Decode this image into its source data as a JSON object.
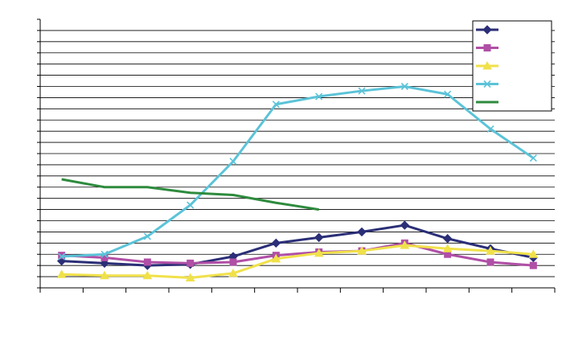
{
  "chart_data": {
    "type": "line",
    "title": "",
    "xlabel": "",
    "ylabel": "",
    "grid": true,
    "legend_position": "top-right",
    "x": [
      1,
      2,
      3,
      4,
      5,
      6,
      7,
      8,
      9,
      10,
      11,
      12
    ],
    "xlim": [
      0.5,
      12.5
    ],
    "ylim": [
      0,
      240
    ],
    "series": [
      {
        "color": "#2B2F77",
        "marker": "diamond",
        "values": [
          24,
          22,
          20,
          21,
          28,
          40,
          45,
          50,
          56,
          44,
          35,
          27
        ]
      },
      {
        "color": "#B04FA6",
        "marker": "square",
        "values": [
          29,
          27,
          23,
          22,
          23,
          29,
          32,
          33,
          40,
          30,
          23,
          20
        ]
      },
      {
        "color": "#F0E14A",
        "marker": "triangle",
        "values": [
          12,
          11,
          11,
          9,
          13,
          26,
          31,
          33,
          38,
          35,
          33,
          30
        ]
      },
      {
        "color": "#5BC3D8",
        "marker": "x",
        "values": [
          28,
          30,
          46,
          74,
          113,
          164,
          171,
          176,
          180,
          173,
          142,
          116
        ]
      },
      {
        "color": "#2E8B3D",
        "marker": "none",
        "values": [
          97,
          90,
          90,
          85,
          83,
          76,
          70,
          null,
          null,
          null,
          null,
          null
        ]
      }
    ]
  }
}
